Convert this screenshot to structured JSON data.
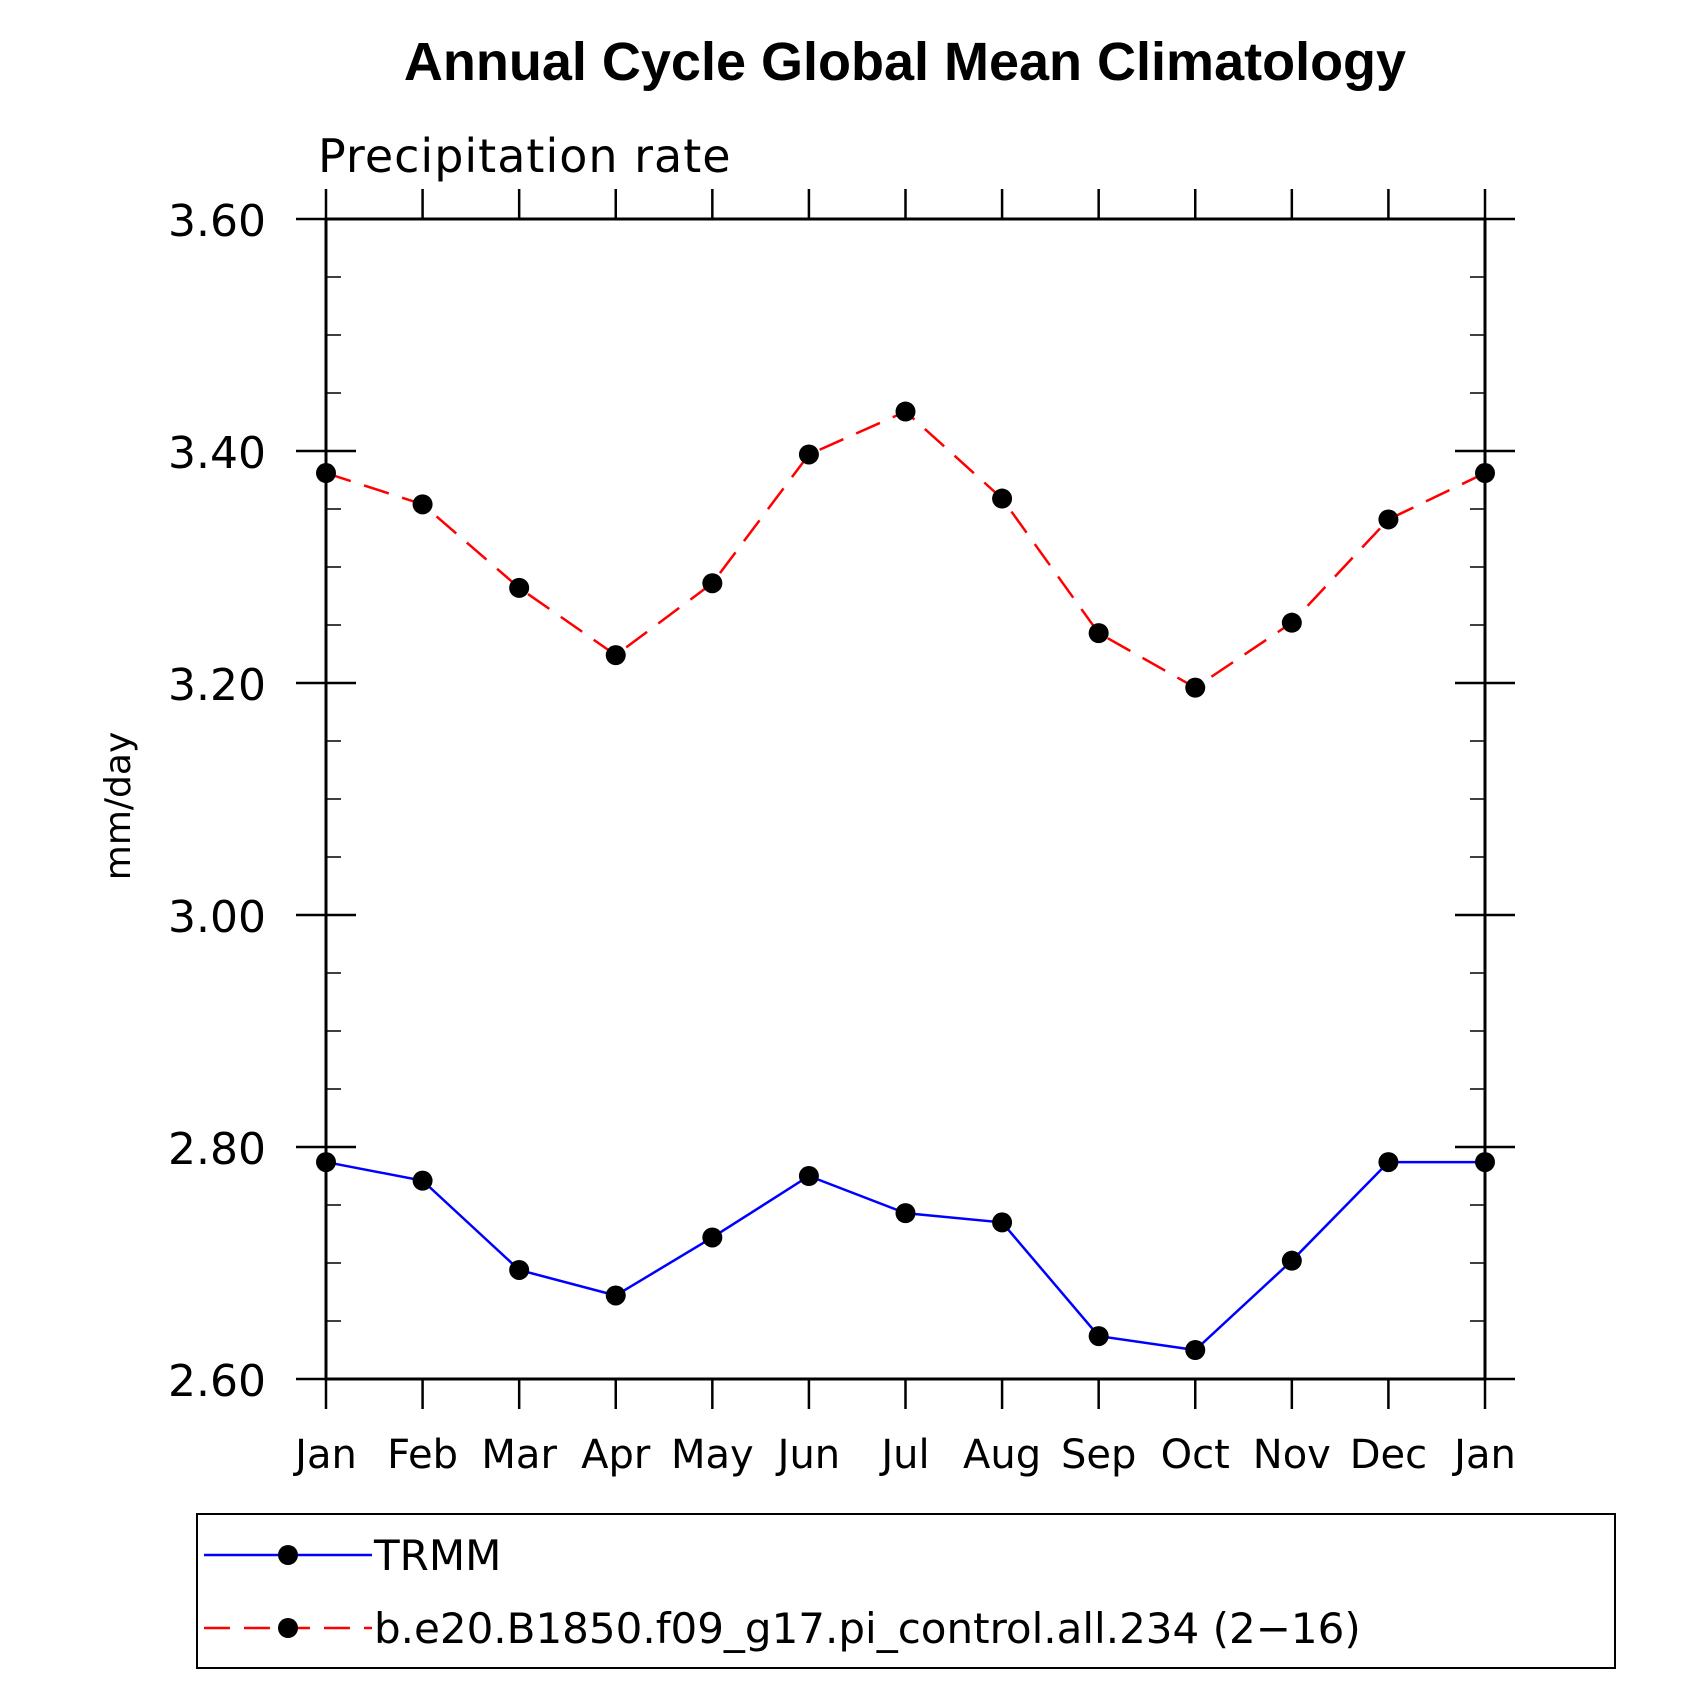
{
  "chart_data": {
    "type": "line",
    "title": "Annual Cycle Global Mean Climatology",
    "subtitle": "Precipitation rate",
    "ylabel": "mm/day",
    "xlabel": "",
    "ylim": [
      2.6,
      3.6
    ],
    "y_major_ticks": [
      "2.60",
      "2.80",
      "3.00",
      "3.20",
      "3.40",
      "3.60"
    ],
    "categories": [
      "Jan",
      "Feb",
      "Mar",
      "Apr",
      "May",
      "Jun",
      "Jul",
      "Aug",
      "Sep",
      "Oct",
      "Nov",
      "Dec",
      "Jan"
    ],
    "series": [
      {
        "name": "TRMM",
        "color": "#0000ff",
        "dash": "solid",
        "marker": "filled-circle",
        "values": [
          2.787,
          2.771,
          2.694,
          2.672,
          2.722,
          2.775,
          2.743,
          2.735,
          2.637,
          2.625,
          2.702,
          2.787,
          2.787
        ]
      },
      {
        "name": "b.e20.B1850.f09_g17.pi_control.all.234 (2-16)",
        "color": "#ff0000",
        "dash": "dashed",
        "marker": "filled-circle",
        "values": [
          3.381,
          3.354,
          3.282,
          3.224,
          3.286,
          3.397,
          3.434,
          3.359,
          3.243,
          3.196,
          3.252,
          3.341,
          3.381
        ]
      }
    ],
    "legend": {
      "position": "bottom",
      "entries": [
        "TRMM",
        "b.e20.B1850.f09_g17.pi_control.all.234 (2−16)"
      ]
    },
    "grid": false
  }
}
